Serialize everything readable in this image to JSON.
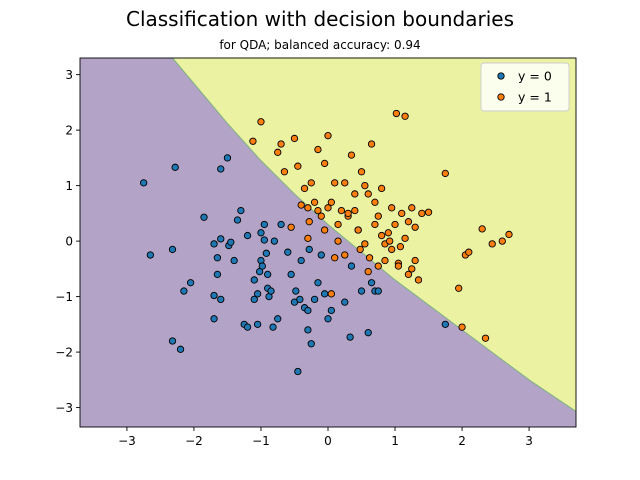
{
  "chart_data": {
    "type": "scatter",
    "title": "Classification with decision boundaries",
    "subtitle": "for QDA; balanced accuracy: 0.94",
    "xlabel": "",
    "ylabel": "",
    "xlim": [
      -3.7,
      3.7
    ],
    "ylim": [
      -3.35,
      3.3
    ],
    "xticks": [
      -3,
      -2,
      -1,
      0,
      1,
      2,
      3
    ],
    "yticks": [
      -3,
      -2,
      -1,
      0,
      1,
      2,
      3
    ],
    "xtick_labels": [
      "−3",
      "−2",
      "−1",
      "0",
      "1",
      "2",
      "3"
    ],
    "ytick_labels": [
      "−3",
      "−2",
      "−1",
      "0",
      "1",
      "2",
      "3"
    ],
    "grid": false,
    "legend_position": "top-right",
    "regions": [
      {
        "class": "y = 0",
        "color": "#b3a3c7"
      },
      {
        "class": "y = 1",
        "color": "#ebf3a3"
      }
    ],
    "boundary": {
      "x": [
        -2.32,
        -1.5,
        -1.0,
        -0.5,
        0.0,
        0.5,
        1.0,
        1.5,
        2.0,
        2.5,
        3.0,
        3.7
      ],
      "y": [
        3.3,
        2.12,
        1.45,
        0.85,
        0.3,
        -0.2,
        -0.7,
        -1.15,
        -1.6,
        -2.05,
        -2.5,
        -3.07
      ]
    },
    "series": [
      {
        "name": "y = 0",
        "color": "#1f77b4",
        "x": [
          -2.75,
          -2.65,
          -2.32,
          -2.28,
          -2.32,
          -2.2,
          -2.15,
          -2.05,
          -1.85,
          -1.7,
          -1.7,
          -1.7,
          -1.65,
          -1.6,
          -1.6,
          -1.5,
          -1.48,
          -1.4,
          -1.35,
          -1.3,
          -1.25,
          -1.2,
          -1.2,
          -1.1,
          -1.1,
          -1.05,
          -1.05,
          -1.02,
          -1.0,
          -1.0,
          -0.98,
          -0.95,
          -0.95,
          -0.92,
          -0.9,
          -0.9,
          -0.88,
          -0.85,
          -0.8,
          -0.75,
          -0.7,
          -0.6,
          -0.55,
          -0.5,
          -0.48,
          -0.45,
          -0.42,
          -0.4,
          -0.35,
          -0.3,
          -0.3,
          -0.28,
          -0.25,
          -0.2,
          -0.15,
          -0.1,
          -0.05,
          0.0,
          0.05,
          0.25,
          0.33,
          0.35,
          0.5,
          0.6,
          0.65,
          0.7,
          0.75,
          1.75,
          -1.6,
          -1.65,
          -1.45,
          -0.82
        ],
        "y": [
          1.05,
          -0.25,
          -0.15,
          1.33,
          -1.8,
          -1.95,
          -0.9,
          -0.75,
          0.43,
          -0.05,
          -0.98,
          -1.4,
          -0.3,
          -1.05,
          1.3,
          1.5,
          -0.08,
          -0.35,
          0.38,
          0.55,
          -1.5,
          -1.55,
          0.1,
          -0.7,
          -1.05,
          -1.5,
          -0.95,
          -0.55,
          -0.35,
          0.15,
          -0.45,
          0.3,
          0.02,
          -0.22,
          -0.85,
          -0.6,
          -1.0,
          -0.9,
          0.0,
          -1.4,
          0.3,
          -0.2,
          -0.6,
          -1.1,
          -0.9,
          -2.35,
          -1.05,
          -0.35,
          -1.2,
          -1.25,
          -1.6,
          -0.15,
          -1.85,
          -1.05,
          -0.75,
          -0.25,
          -0.95,
          -1.4,
          -1.25,
          -1.1,
          -1.73,
          -0.45,
          -0.9,
          -1.65,
          -0.75,
          -0.9,
          -0.9,
          -1.5,
          0.04,
          -0.6,
          -0.02,
          -1.55
        ]
      },
      {
        "name": "y = 1",
        "color": "#ff7f0e",
        "x": [
          -1.12,
          -1.0,
          -0.75,
          -0.7,
          -0.65,
          -0.5,
          -0.45,
          -0.4,
          -0.35,
          -0.3,
          -0.25,
          -0.2,
          -0.15,
          -0.1,
          -0.05,
          0.0,
          0.05,
          0.1,
          0.15,
          0.2,
          0.25,
          0.3,
          0.35,
          0.4,
          0.45,
          0.5,
          0.55,
          0.6,
          0.65,
          0.7,
          0.75,
          0.8,
          0.85,
          0.9,
          0.95,
          1.0,
          1.05,
          1.1,
          1.15,
          1.2,
          1.25,
          1.3,
          1.35,
          1.4,
          1.5,
          1.75,
          1.95,
          2.0,
          2.05,
          2.1,
          2.3,
          2.35,
          2.45,
          2.6,
          2.7,
          -0.55,
          -0.28,
          0.0,
          0.48,
          0.62,
          0.92,
          1.08,
          1.2,
          -0.3,
          0.1,
          0.3,
          0.55,
          0.8,
          1.05,
          1.25,
          -0.15,
          0.25,
          0.7,
          0.95,
          1.15,
          0.4,
          0.6,
          0.85,
          1.02,
          -0.05,
          0.15,
          0.45,
          0.75,
          1.3,
          0.05
        ],
        "y": [
          1.8,
          2.15,
          1.6,
          1.75,
          1.25,
          1.85,
          1.35,
          0.65,
          0.95,
          0.6,
          1.05,
          0.7,
          1.65,
          0.45,
          1.4,
          1.9,
          0.7,
          1.05,
          0.3,
          0.55,
          1.05,
          0.45,
          1.55,
          0.85,
          0.2,
          1.25,
          1.0,
          0.85,
          1.75,
          0.7,
          0.45,
          0.95,
          -0.05,
          0.15,
          0.6,
          0.3,
          -0.4,
          0.5,
          2.25,
          -0.6,
          0.6,
          0.25,
          -0.7,
          0.5,
          0.52,
          1.22,
          -0.85,
          -1.55,
          -0.25,
          -0.2,
          0.22,
          -1.75,
          -0.05,
          0.0,
          0.12,
          0.25,
          0.35,
          0.6,
          -0.15,
          -0.3,
          0.0,
          -0.1,
          0.35,
          0.05,
          -0.3,
          0.5,
          -0.05,
          0.1,
          -0.45,
          -0.5,
          0.55,
          -0.25,
          0.3,
          -0.15,
          0.05,
          0.55,
          -0.55,
          -0.35,
          2.3,
          0.2,
          0.0,
          0.2,
          -0.45,
          -0.35,
          -0.95
        ]
      }
    ]
  }
}
